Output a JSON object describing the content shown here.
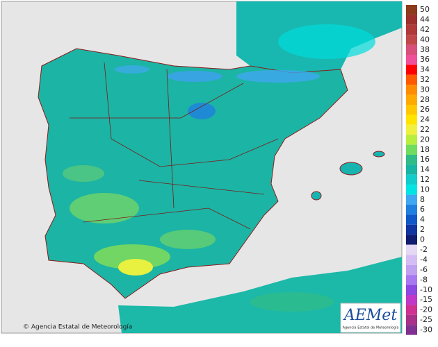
{
  "copyright": "© Agencia Estatal de Meteorología",
  "logo": {
    "name": "AEMet",
    "subtitle": "Agencia Estatal de Meteorología"
  },
  "legend": {
    "positive": [
      {
        "label": "50",
        "color": "#8b3a1a"
      },
      {
        "label": "44",
        "color": "#9c2f2a"
      },
      {
        "label": "42",
        "color": "#b03a3a"
      },
      {
        "label": "40",
        "color": "#c04848"
      },
      {
        "label": "38",
        "color": "#d8507a"
      },
      {
        "label": "36",
        "color": "#f0509a"
      },
      {
        "label": "34",
        "color": "#ff0000"
      },
      {
        "label": "32",
        "color": "#ff5a00"
      },
      {
        "label": "30",
        "color": "#ff8c00"
      },
      {
        "label": "28",
        "color": "#ffaa00"
      },
      {
        "label": "26",
        "color": "#ffc800"
      },
      {
        "label": "24",
        "color": "#ffe400"
      },
      {
        "label": "22",
        "color": "#f0f040"
      },
      {
        "label": "20",
        "color": "#b8ee40"
      },
      {
        "label": "18",
        "color": "#70dc60"
      },
      {
        "label": "16",
        "color": "#30bc88"
      },
      {
        "label": "14",
        "color": "#18b4a4"
      },
      {
        "label": "12",
        "color": "#10cccc"
      },
      {
        "label": "10",
        "color": "#00e4e4"
      },
      {
        "label": "8",
        "color": "#40a8f0"
      },
      {
        "label": "6",
        "color": "#2080e0"
      },
      {
        "label": "4",
        "color": "#1058c8"
      },
      {
        "label": "2",
        "color": "#1034a0"
      },
      {
        "label": "0",
        "color": "#101c70"
      }
    ],
    "negative": [
      {
        "label": "-2",
        "color": "#e4d8f4"
      },
      {
        "label": "-4",
        "color": "#d4bcf4"
      },
      {
        "label": "-6",
        "color": "#c0a0f0"
      },
      {
        "label": "-8",
        "color": "#a878f0"
      },
      {
        "label": "-10",
        "color": "#8c48e0"
      },
      {
        "label": "-15",
        "color": "#c038c8"
      },
      {
        "label": "-20",
        "color": "#d03090"
      },
      {
        "label": "-25",
        "color": "#a83088"
      },
      {
        "label": "-30",
        "color": "#803090"
      }
    ]
  }
}
